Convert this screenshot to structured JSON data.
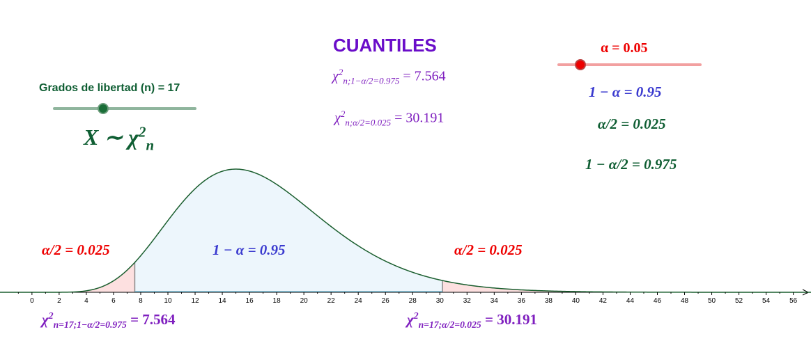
{
  "title": "CUANTILES",
  "n_slider": {
    "label": "Grados de libertad (n) = 17"
  },
  "alpha_slider": {
    "label": "α = 0.05"
  },
  "distribution": {
    "text": "X ∼ χ",
    "sup": "2",
    "sub": "n"
  },
  "quantiles": [
    {
      "sym": "χ",
      "sup": "2",
      "sub": "n;1−α/2=0.975",
      "eq": " = 7.564"
    },
    {
      "sym": "χ",
      "sup": "2",
      "sub": "n;α/2=0.025",
      "eq": " = 30.191"
    }
  ],
  "alpha_info": [
    "1 − α = 0.95",
    "α/2 = 0.025",
    "1 − α/2 = 0.975"
  ],
  "region_labels": [
    "α/2 = 0.025",
    "1 − α = 0.95",
    "α/2 = 0.025"
  ],
  "bottom_quantiles": [
    {
      "sym": "χ",
      "sup": "2",
      "sub": "n=17;1−α/2=0.975",
      "eq": " = 7.564"
    },
    {
      "sym": "χ",
      "sup": "2",
      "sub": "n=17;α/2=0.025",
      "eq": " = 30.191"
    }
  ],
  "plot": {
    "n": 17,
    "lower": 7.564,
    "upper": 30.191,
    "xlim": [
      -2.35,
      57.3
    ],
    "xticks": [
      0,
      2,
      4,
      6,
      8,
      10,
      12,
      14,
      16,
      18,
      20,
      22,
      24,
      26,
      28,
      30,
      32,
      34,
      36,
      38,
      40,
      42,
      44,
      46,
      48,
      50,
      52,
      54,
      56
    ]
  }
}
